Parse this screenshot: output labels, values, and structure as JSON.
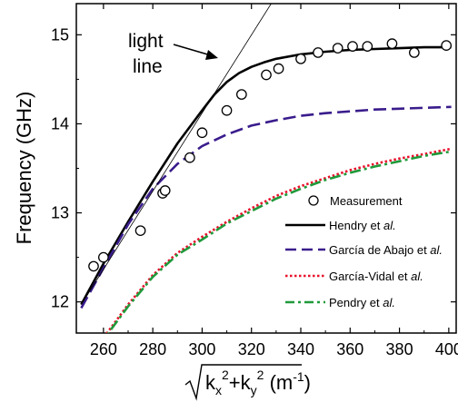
{
  "chart_data": {
    "type": "line",
    "ylabel": "Frequency (GHz)",
    "xlabel": {
      "prefix": "k",
      "x_sub": "x",
      "y_sub": "y",
      "sup": "2",
      "plus": "+",
      "unit_open": " (m",
      "unit_exp": "-1",
      "unit_close": ")"
    },
    "xlim": [
      249,
      403
    ],
    "ylim": [
      11.65,
      15.35
    ],
    "xticks": [
      260,
      280,
      300,
      320,
      340,
      360,
      380,
      400
    ],
    "yticks": [
      12,
      13,
      14,
      15
    ],
    "annotations": {
      "light_line": [
        "light",
        "line"
      ]
    },
    "series": [
      {
        "name": "Measurement",
        "style": "markers",
        "color": "#000000",
        "x": [
          256,
          260,
          275,
          284,
          285,
          295,
          300,
          310,
          316,
          326,
          331,
          340,
          347,
          355,
          361,
          367,
          377,
          386,
          399
        ],
        "y": [
          12.4,
          12.5,
          12.8,
          13.22,
          13.25,
          13.62,
          13.9,
          14.15,
          14.33,
          14.55,
          14.62,
          14.73,
          14.8,
          14.85,
          14.87,
          14.87,
          14.9,
          14.8,
          14.88
        ]
      },
      {
        "name": "Hendry et al.",
        "name_main": "Hendry et ",
        "name_italic": "al.",
        "style": "solid",
        "color": "#000000",
        "x": [
          251,
          260,
          270,
          280,
          290,
          300,
          305,
          310,
          315,
          320,
          325,
          330,
          340,
          350,
          360,
          370,
          380,
          390,
          401
        ],
        "y": [
          11.97,
          12.43,
          12.9,
          13.35,
          13.78,
          14.15,
          14.33,
          14.47,
          14.57,
          14.64,
          14.69,
          14.73,
          14.78,
          14.81,
          14.83,
          14.84,
          14.85,
          14.86,
          14.86
        ]
      },
      {
        "name": "García de Abajo et al.",
        "name_main": "García de Abajo et ",
        "name_italic": "al.",
        "style": "dashed",
        "color": "#3a1c8c",
        "x": [
          251,
          260,
          270,
          280,
          290,
          300,
          310,
          320,
          330,
          340,
          350,
          360,
          370,
          380,
          390,
          401
        ],
        "y": [
          11.93,
          12.38,
          12.87,
          13.27,
          13.55,
          13.75,
          13.88,
          13.98,
          14.04,
          14.09,
          14.12,
          14.14,
          14.16,
          14.17,
          14.18,
          14.19
        ]
      },
      {
        "name": "García-Vidal et al.",
        "name_main": "García-Vidal et ",
        "name_italic": "al.",
        "style": "dotted",
        "color": "#e8102a",
        "x": [
          258,
          270,
          280,
          290,
          300,
          310,
          320,
          330,
          340,
          350,
          360,
          370,
          380,
          390,
          401
        ],
        "y": [
          11.52,
          11.97,
          12.3,
          12.55,
          12.73,
          12.9,
          13.05,
          13.19,
          13.3,
          13.39,
          13.48,
          13.55,
          13.61,
          13.66,
          13.72
        ]
      },
      {
        "name": "Pendry et al.",
        "name_main": "Pendry et ",
        "name_italic": "al.",
        "style": "dash-dot",
        "color": "#1f9a3a",
        "x": [
          258,
          270,
          280,
          290,
          300,
          310,
          320,
          330,
          340,
          350,
          360,
          370,
          380,
          390,
          401
        ],
        "y": [
          11.5,
          11.95,
          12.28,
          12.53,
          12.7,
          12.88,
          13.02,
          13.16,
          13.27,
          13.37,
          13.45,
          13.52,
          13.58,
          13.64,
          13.69
        ]
      },
      {
        "name": "light line",
        "style": "thin",
        "color": "#000000",
        "x": [
          251,
          328
        ],
        "y": [
          11.97,
          15.35
        ]
      }
    ],
    "legend": {
      "placement": "lower-right"
    }
  }
}
